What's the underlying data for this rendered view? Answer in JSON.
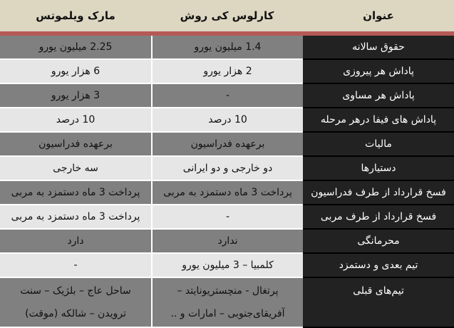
{
  "headers": {
    "title": "عنوان",
    "col1": "کارلوس کی روش",
    "col2": "مارک ویلموتس"
  },
  "rows": [
    {
      "title": "حقوق سالانه",
      "col1": "1.4 میلیون یورو",
      "col2": "2.25 میلیون یورو"
    },
    {
      "title": "پاداش هر پیروزی",
      "col1": "2 هزار یورو",
      "col2": "6 هزار یورو"
    },
    {
      "title": "پاداش هر مساوی",
      "col1": "-",
      "col2": "3 هزار یورو"
    },
    {
      "title": "پاداش های فیفا درهر مرحله",
      "col1": "10 درصد",
      "col2": "10 درصد"
    },
    {
      "title": "مالیات",
      "col1": "برعهده فدراسیون",
      "col2": "برعهده فدراسیون"
    },
    {
      "title": "دستیارها",
      "col1": "دو خارجی و دو ایرانی",
      "col2": "سه خارجی"
    },
    {
      "title": "فسخ قرارداد از طرف فدراسیون",
      "col1": "پرداخت 3 ماه دستمزد به مربی",
      "col2": "پرداخت 3 ماه دستمزد به مربی"
    },
    {
      "title": "فسخ قرارداد از طرف مربی",
      "col1": "-",
      "col2": "پرداخت 3 ماه دستمزد به مربی"
    },
    {
      "title": "محرمانگی",
      "col1": "ندارد",
      "col2": "دارد"
    },
    {
      "title": "تیم بعدی و دستمزد",
      "col1": "کلمبیا – 3 میلیون یورو",
      "col2": "-"
    },
    {
      "title": "تیم‌های قبلی",
      "col1_line1": "پرتغال - منچستریونایتد –",
      "col1_line2": "آفریقای‌جنوبی – امارات و ..",
      "col2_line1": "ساحل عاج – بلژیک – سنت",
      "col2_line2": "ترویدن – شالکه (موقت)"
    }
  ],
  "colors": {
    "header_bg": "#ddd7c2",
    "header_border": "#b65a56",
    "title_col_bg": "#222222",
    "dark_row": "#808080",
    "light_row": "#e6e6e6"
  }
}
